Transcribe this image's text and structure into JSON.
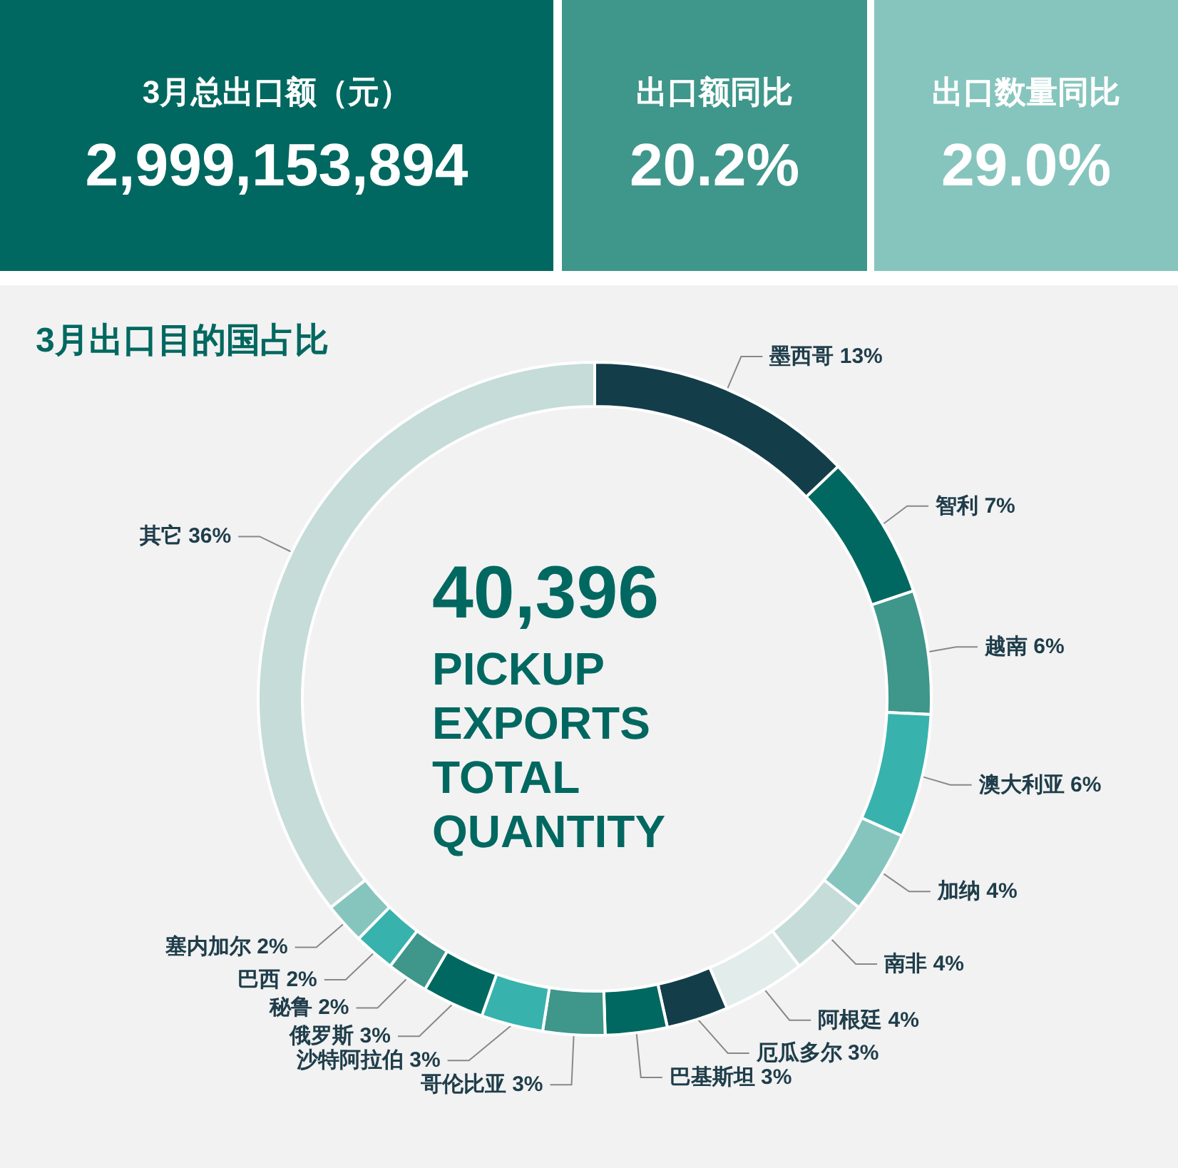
{
  "chart_data": [
    {
      "type": "other",
      "title": "3月总出口额（元）",
      "annotations": [
        "2,999,153,894"
      ],
      "color": "#006860"
    },
    {
      "type": "other",
      "title": "出口额同比",
      "annotations": [
        "20.2%"
      ],
      "color": "#3f968a"
    },
    {
      "type": "other",
      "title": "出口数量同比",
      "annotations": [
        "29.0%"
      ],
      "color": "#86c5bd"
    },
    {
      "type": "donut",
      "title": "3月出口目的国占比",
      "categories": [
        "墨西哥",
        "智利",
        "越南",
        "澳大利亚",
        "加纳",
        "南非",
        "阿根廷",
        "厄瓜多尔",
        "巴基斯坦",
        "哥伦比亚",
        "沙特阿拉伯",
        "俄罗斯",
        "秘鲁",
        "巴西",
        "塞内加尔",
        "其它"
      ],
      "values": [
        13,
        7,
        6,
        6,
        4,
        4,
        4,
        3,
        3,
        3,
        3,
        3,
        2,
        2,
        2,
        36
      ],
      "value_labels": [
        "13%",
        "7%",
        "6%",
        "6%",
        "4%",
        "4%",
        "4%",
        "3%",
        "3%",
        "3%",
        "3%",
        "3%",
        "2%",
        "2%",
        "2%",
        "36%"
      ],
      "colors": [
        "#143d4a",
        "#006860",
        "#3f968a",
        "#38b2ad",
        "#86c5bd",
        "#c5dcd9",
        "#e1eceb",
        "#143d4a",
        "#006860",
        "#3f968a",
        "#38b2ad",
        "#006860",
        "#3f968a",
        "#38b2ad",
        "#86c5bd",
        "#c5dcd9"
      ],
      "annotations": [
        "40,396",
        "PICKUP EXPORTS TOTAL QUANTITY"
      ]
    }
  ]
}
